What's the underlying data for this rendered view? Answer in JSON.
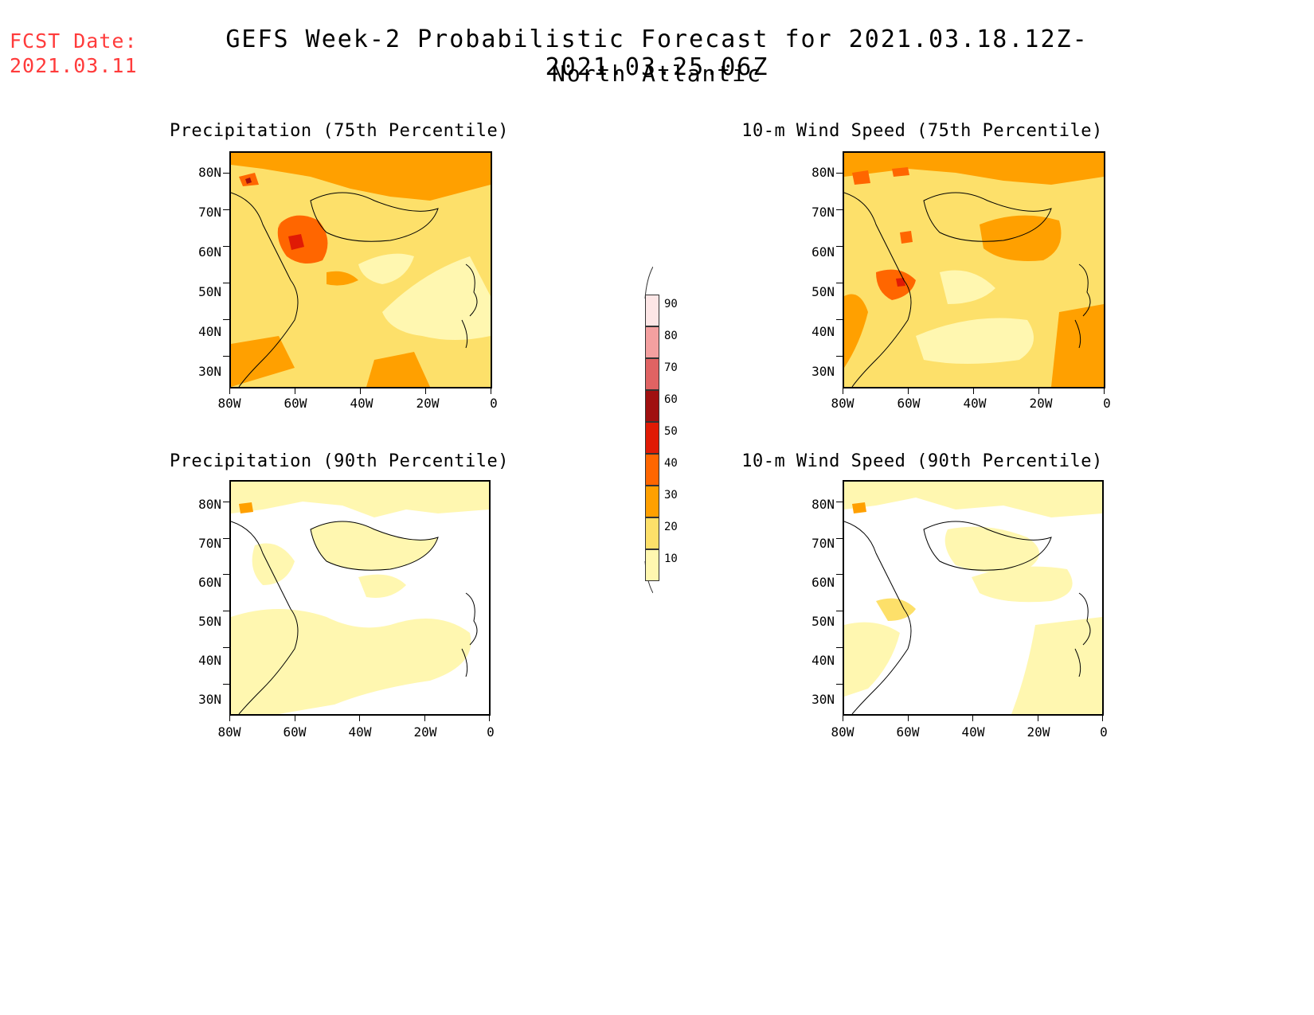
{
  "header": {
    "fcst_line1": "FCST Date:",
    "fcst_line2": "2021.03.11",
    "title": "GEFS Week-2 Probabilistic Forecast for 2021.03.18.12Z-2021.03.25.06Z",
    "subtitle": "North Atlantic"
  },
  "axes": {
    "lat_labels": [
      "80N",
      "70N",
      "60N",
      "50N",
      "40N",
      "30N"
    ],
    "lon_labels": [
      "80W",
      "60W",
      "40W",
      "20W",
      "0"
    ]
  },
  "panels": [
    {
      "title": "Precipitation (75th Percentile)",
      "level": "high"
    },
    {
      "title": "10-m Wind Speed (75th Percentile)",
      "level": "high"
    },
    {
      "title": "Precipitation (90th Percentile)",
      "level": "low"
    },
    {
      "title": "10-m Wind Speed (90th Percentile)",
      "level": "low"
    }
  ],
  "colorbar": {
    "labels": [
      "90",
      "80",
      "70",
      "60",
      "50",
      "40",
      "30",
      "20",
      "10"
    ],
    "colors": [
      "#fde6e6",
      "#f4a0a0",
      "#e06363",
      "#a01010",
      "#e01b05",
      "#ff6600",
      "#ffa000",
      "#fde06a",
      "#fff7b0"
    ]
  },
  "colors": {
    "fcst_text": "#ff3b3b",
    "light_yellow": "#fff7b0",
    "yellow": "#fde06a",
    "orange": "#ffa000",
    "dark_orange": "#ff6600",
    "red": "#e01b05"
  }
}
